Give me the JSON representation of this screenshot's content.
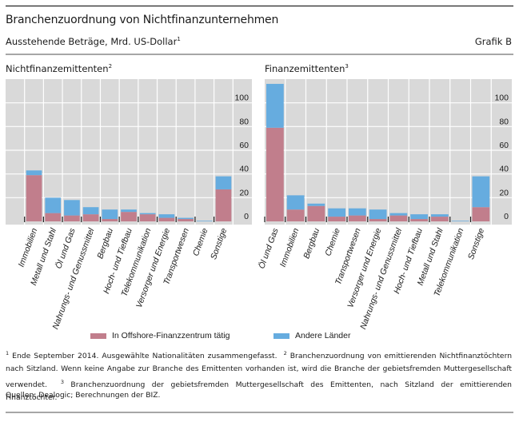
{
  "header": {
    "title": "Branchenzuordnung von Nichtfinanzunternehmen",
    "subtitle": "Ausstehende Beträge, Mrd. US-Dollar",
    "subtitle_sup": "1",
    "graphic_label": "Grafik B"
  },
  "colors": {
    "offshore": "#c17e8c",
    "other": "#66acdf",
    "plot_bg": "#d9d9d9",
    "grid": "#ffffff"
  },
  "legend": [
    {
      "label": "In Offshore-Finanzzentrum tätig",
      "color_key": "offshore"
    },
    {
      "label": "Andere Länder",
      "color_key": "other"
    }
  ],
  "chart_data": [
    {
      "type": "bar",
      "stacked": true,
      "title": "Nichtfinanzemittenten",
      "title_sup": "2",
      "categories": [
        "Immobilien",
        "Metall und Stahl",
        "Öl und Gas",
        "Nahrungs- und Genussmittel",
        "Bergbau",
        "Hoch- und Tiefbau",
        "Telekommunikation",
        "Versorger und Energie",
        "Transportwesen",
        "Chemie",
        "Sonstige"
      ],
      "series": [
        {
          "name": "In Offshore-Finanzzentrum tätig",
          "values": [
            39,
            7,
            5,
            6,
            2,
            8,
            6,
            3,
            2,
            0,
            27
          ]
        },
        {
          "name": "Andere Länder",
          "values": [
            4,
            13,
            13,
            6,
            8,
            2,
            1,
            3,
            1,
            0.5,
            11
          ]
        }
      ],
      "yticks": [
        0,
        20,
        40,
        60,
        80,
        100
      ],
      "ylim": [
        0,
        120
      ],
      "xlabel": "",
      "ylabel": "",
      "grid": true,
      "y_axis_side": "right"
    },
    {
      "type": "bar",
      "stacked": true,
      "title": "Finanzemittenten",
      "title_sup": "3",
      "categories": [
        "Öl und Gas",
        "Immobilien",
        "Bergbau",
        "Chemie",
        "Transportwesen",
        "Versorger und Energie",
        "Nahrungs- und Genussmittel",
        "Hoch- und Tiefbau",
        "Metall und Stahl",
        "Telekommunikation",
        "Sonstige"
      ],
      "series": [
        {
          "name": "In Offshore-Finanzzentrum tätig",
          "values": [
            79,
            10,
            13,
            4,
            5,
            2,
            5,
            2,
            4,
            0,
            12
          ]
        },
        {
          "name": "Andere Länder",
          "values": [
            37,
            12,
            2,
            7,
            6,
            8,
            2,
            4,
            2,
            0.5,
            26
          ]
        }
      ],
      "yticks": [
        0,
        20,
        40,
        60,
        80,
        100
      ],
      "ylim": [
        0,
        120
      ],
      "xlabel": "",
      "ylabel": "",
      "grid": true,
      "y_axis_side": "right"
    }
  ],
  "footnotes": {
    "n1_sup": "1",
    "n1": "Ende September 2014. Ausgewählte Nationalitäten zusammengefasst.",
    "n2_sup": "2",
    "n2": "Branchenzuordnung von emittierenden Nichtfinanztöchtern nach Sitzland. Wenn keine Angabe zur Branche des Emittenten vorhanden ist, wird die Branche der gebietsfremden Muttergesellschaft verwendet.",
    "n3_sup": "3",
    "n3": "Branchenzuordnung der gebietsfremden Muttergesellschaft des Emittenten, nach Sitzland der emittierenden Finanztöchter.",
    "source": "Quellen: Dealogic; Berechnungen der BIZ."
  }
}
